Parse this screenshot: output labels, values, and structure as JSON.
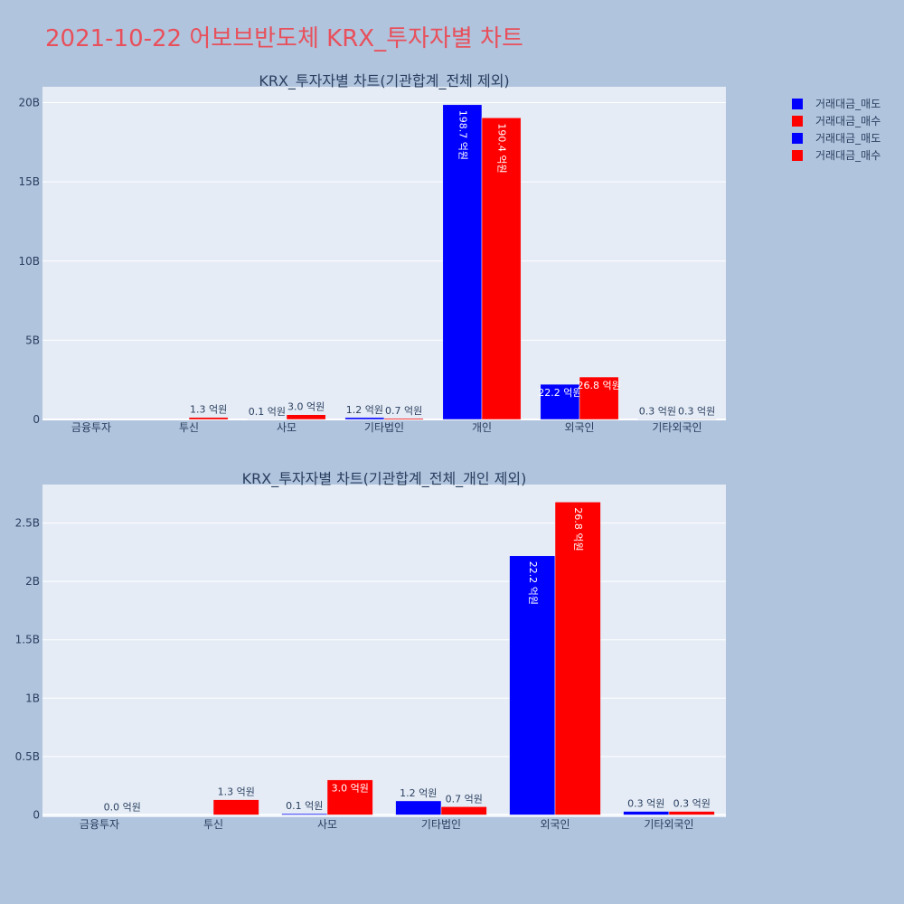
{
  "title": "2021-10-22 어보브반도체 KRX_투자자별 차트",
  "legend": [
    {
      "label": "거래대금_매도",
      "color": "#0000ff"
    },
    {
      "label": "거래대금_매수",
      "color": "#ff0000"
    },
    {
      "label": "거래대금_매도",
      "color": "#0000ff"
    },
    {
      "label": "거래대금_매수",
      "color": "#ff0000"
    }
  ],
  "chart_data": [
    {
      "type": "bar",
      "title": "KRX_투자자별 차트(기관합계_전체 제외)",
      "categories": [
        "금융투자",
        "투신",
        "사모",
        "기타법인",
        "개인",
        "외국인",
        "기타외국인"
      ],
      "ylim": [
        0,
        21000000000
      ],
      "yticks": [
        0,
        5000000000,
        10000000000,
        15000000000,
        20000000000
      ],
      "yticklabels": [
        "0",
        "5B",
        "10B",
        "15B",
        "20B"
      ],
      "series": [
        {
          "name": "거래대금_매도",
          "color": "#0000ff",
          "values": [
            0,
            0,
            10000000,
            120000000,
            19870000000,
            2220000000,
            30000000
          ],
          "labels": [
            "",
            "",
            "0.1 억원",
            "1.2 억원",
            "198.7 억원",
            "22.2 억원",
            "0.3 억원"
          ]
        },
        {
          "name": "거래대금_매수",
          "color": "#ff0000",
          "values": [
            0,
            130000000,
            300000000,
            70000000,
            19040000000,
            2680000000,
            30000000
          ],
          "labels": [
            "",
            "1.3 억원",
            "3.0 억원",
            "0.7 억원",
            "190.4 억원",
            "26.8 억원",
            "0.3 억원"
          ]
        }
      ]
    },
    {
      "type": "bar",
      "title": "KRX_투자자별 차트(기관합계_전체_개인 제외)",
      "categories": [
        "금융투자",
        "투신",
        "사모",
        "기타법인",
        "외국인",
        "기타외국인"
      ],
      "ylim": [
        -20000000,
        2830000000
      ],
      "yticks": [
        0,
        500000000,
        1000000000,
        1500000000,
        2000000000,
        2500000000
      ],
      "yticklabels": [
        "0",
        "0.5B",
        "1B",
        "1.5B",
        "2B",
        "2.5B"
      ],
      "series": [
        {
          "name": "거래대금_매도",
          "color": "#0000ff",
          "values": [
            0,
            0,
            10000000,
            120000000,
            2220000000,
            30000000
          ],
          "labels": [
            "",
            "",
            "0.1 억원",
            "1.2 억원",
            "22.2 억원",
            "0.3 억원"
          ]
        },
        {
          "name": "거래대금_매수",
          "color": "#ff0000",
          "values": [
            0,
            130000000,
            300000000,
            70000000,
            2680000000,
            30000000
          ],
          "labels": [
            "0.0 억원",
            "1.3 억원",
            "3.0 억원",
            "0.7 억원",
            "26.8 억원",
            "0.3 억원"
          ]
        }
      ]
    }
  ]
}
